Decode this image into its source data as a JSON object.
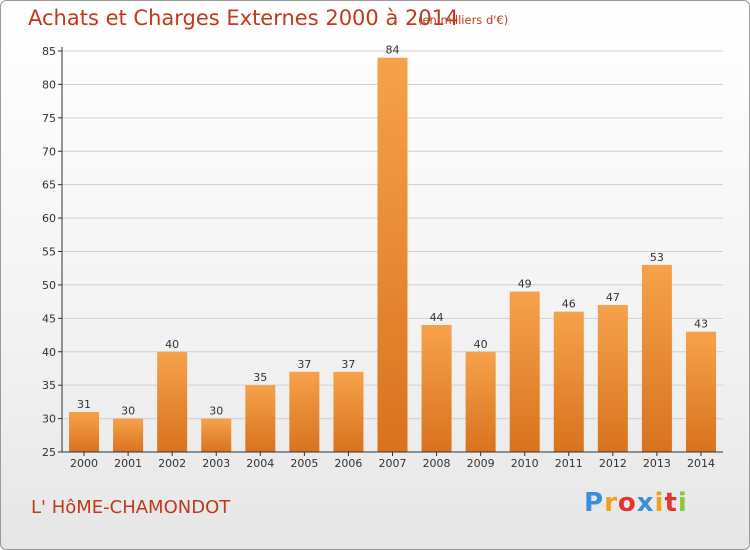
{
  "header": {
    "title": "Achats et Charges Externes 2000 à 2014",
    "subtitle": "(en milliers d'€)"
  },
  "footer": {
    "commune": "L' HôME-CHAMONDOT",
    "logo_letters": [
      "P",
      "r",
      "o",
      "x",
      "i",
      "t",
      "i"
    ],
    "logo_colors": [
      "#3b8ed8",
      "#f0a21c",
      "#e2352b",
      "#3b8ed8",
      "#f0a21c",
      "#e2352b",
      "#8cc63f"
    ]
  },
  "colors": {
    "bar_light": "#f6a24a",
    "bar_dark": "#d9721f",
    "grid": "#d0d0d0",
    "axis": "#333333"
  },
  "chart_data": {
    "type": "bar",
    "title": "Achats et Charges Externes 2000 à 2014",
    "subtitle": "(en milliers d'€)",
    "categories": [
      "2000",
      "2001",
      "2002",
      "2003",
      "2004",
      "2005",
      "2006",
      "2007",
      "2008",
      "2009",
      "2010",
      "2011",
      "2012",
      "2013",
      "2014"
    ],
    "values": [
      31,
      30,
      40,
      30,
      35,
      37,
      37,
      84,
      44,
      40,
      49,
      46,
      47,
      53,
      43
    ],
    "ylim": [
      25,
      85
    ],
    "yticks": [
      25,
      30,
      35,
      40,
      45,
      50,
      55,
      60,
      65,
      70,
      75,
      80,
      85
    ],
    "grid": true
  }
}
